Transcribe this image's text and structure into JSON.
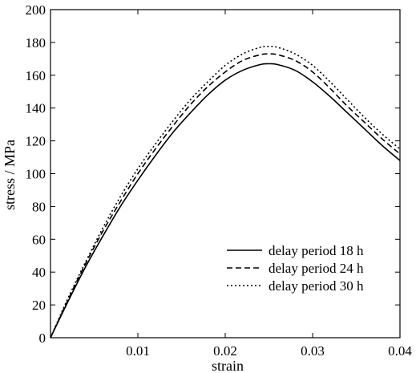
{
  "chart_data": {
    "type": "line",
    "title": "",
    "xlabel": "strain",
    "ylabel": "stress / MPa",
    "xlim": [
      0,
      0.04
    ],
    "ylim": [
      0,
      200
    ],
    "x_ticks": [
      0.01,
      0.02,
      0.03,
      0.04
    ],
    "x_tick_labels": [
      "0.01",
      "0.02",
      "0.03",
      "0.04"
    ],
    "y_ticks": [
      0,
      20,
      40,
      60,
      80,
      100,
      120,
      140,
      160,
      180,
      200
    ],
    "y_tick_labels": [
      "0",
      "20",
      "40",
      "60",
      "80",
      "100",
      "120",
      "140",
      "160",
      "180",
      "200"
    ],
    "grid": false,
    "legend_position": "bottom-right",
    "series": [
      {
        "name": "delay period 18 h",
        "style": "solid",
        "x": [
          0,
          0.002,
          0.004,
          0.006,
          0.008,
          0.01,
          0.012,
          0.014,
          0.016,
          0.018,
          0.02,
          0.022,
          0.024,
          0.025,
          0.026,
          0.028,
          0.03,
          0.032,
          0.034,
          0.036,
          0.038,
          0.04
        ],
        "y": [
          0,
          22,
          43,
          62,
          80,
          96,
          111,
          125,
          137,
          148,
          157,
          163,
          166.5,
          167,
          166.5,
          163,
          156,
          147,
          137,
          127,
          117,
          108
        ]
      },
      {
        "name": "delay period 24 h",
        "style": "dashed",
        "x": [
          0,
          0.002,
          0.004,
          0.006,
          0.008,
          0.01,
          0.012,
          0.014,
          0.016,
          0.018,
          0.02,
          0.022,
          0.024,
          0.025,
          0.026,
          0.028,
          0.03,
          0.032,
          0.034,
          0.036,
          0.038,
          0.04
        ],
        "y": [
          0,
          23,
          45,
          65,
          83,
          100,
          115,
          129,
          142,
          153,
          162,
          169,
          172.5,
          173,
          172.5,
          169,
          162,
          152,
          141,
          131,
          121,
          112
        ]
      },
      {
        "name": "delay period 30 h",
        "style": "dotted",
        "x": [
          0,
          0.002,
          0.004,
          0.006,
          0.008,
          0.01,
          0.012,
          0.014,
          0.016,
          0.018,
          0.02,
          0.022,
          0.024,
          0.025,
          0.026,
          0.028,
          0.03,
          0.032,
          0.034,
          0.036,
          0.038,
          0.04
        ],
        "y": [
          0,
          24,
          46,
          67,
          86,
          103,
          118,
          132,
          145,
          156,
          166,
          173,
          177,
          177.5,
          177,
          173,
          166,
          156,
          145,
          134,
          124,
          115
        ]
      }
    ]
  }
}
